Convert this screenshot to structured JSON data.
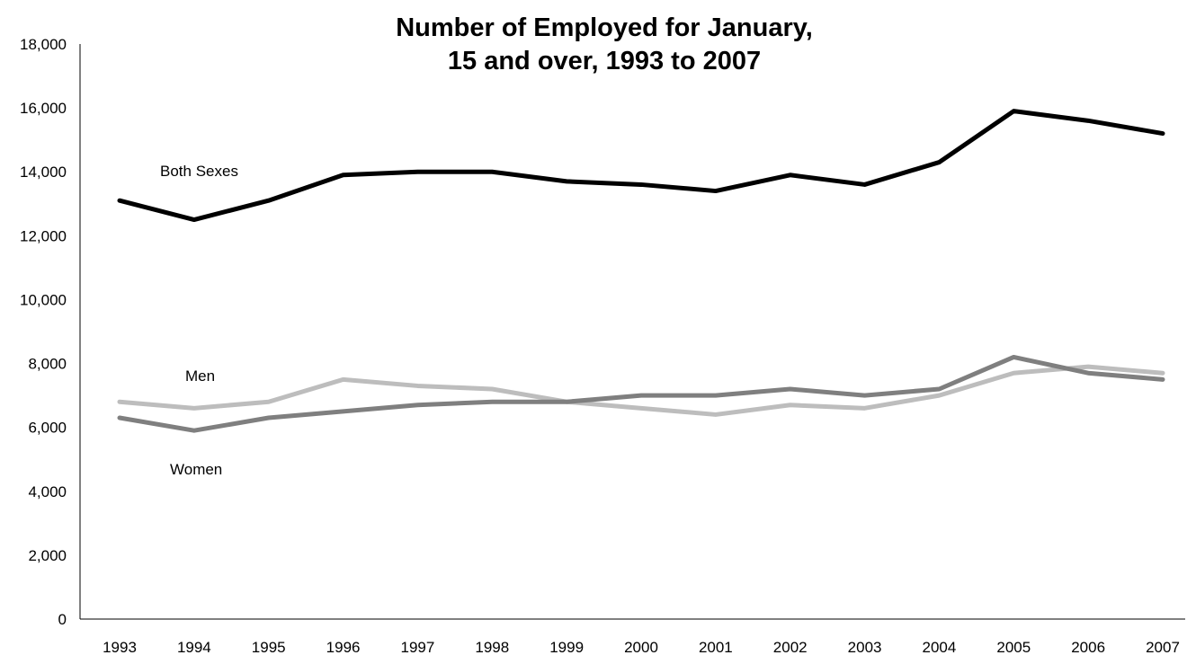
{
  "chart_data": {
    "type": "line",
    "title": [
      "Number of Employed for January,",
      "15 and over, 1993 to 2007"
    ],
    "xlabel": "",
    "ylabel": "",
    "x": [
      "1993",
      "1994",
      "1995",
      "1996",
      "1997",
      "1998",
      "1999",
      "2000",
      "2001",
      "2002",
      "2003",
      "2004",
      "2005",
      "2006",
      "2007"
    ],
    "ylim": [
      0,
      18000
    ],
    "yticks": [
      "0",
      "2,000",
      "4,000",
      "6,000",
      "8,000",
      "10,000",
      "12,000",
      "14,000",
      "16,000",
      "18,000"
    ],
    "grid": false,
    "legend": "none",
    "series": [
      {
        "name": "Both Sexes",
        "color": "#000000",
        "values": [
          13100,
          12500,
          13100,
          13900,
          14000,
          14000,
          13700,
          13600,
          13400,
          13900,
          13600,
          14300,
          15900,
          15600,
          15200
        ]
      },
      {
        "name": "Men",
        "color": "#bdbdbd",
        "values": [
          6800,
          6600,
          6800,
          7500,
          7300,
          7200,
          6800,
          6600,
          6400,
          6700,
          6600,
          7000,
          7700,
          7900,
          7700
        ]
      },
      {
        "name": "Women",
        "color": "#7f7f7f",
        "values": [
          6300,
          5900,
          6300,
          6500,
          6700,
          6800,
          6800,
          7000,
          7000,
          7200,
          7000,
          7200,
          8200,
          7700,
          7500
        ]
      }
    ]
  }
}
